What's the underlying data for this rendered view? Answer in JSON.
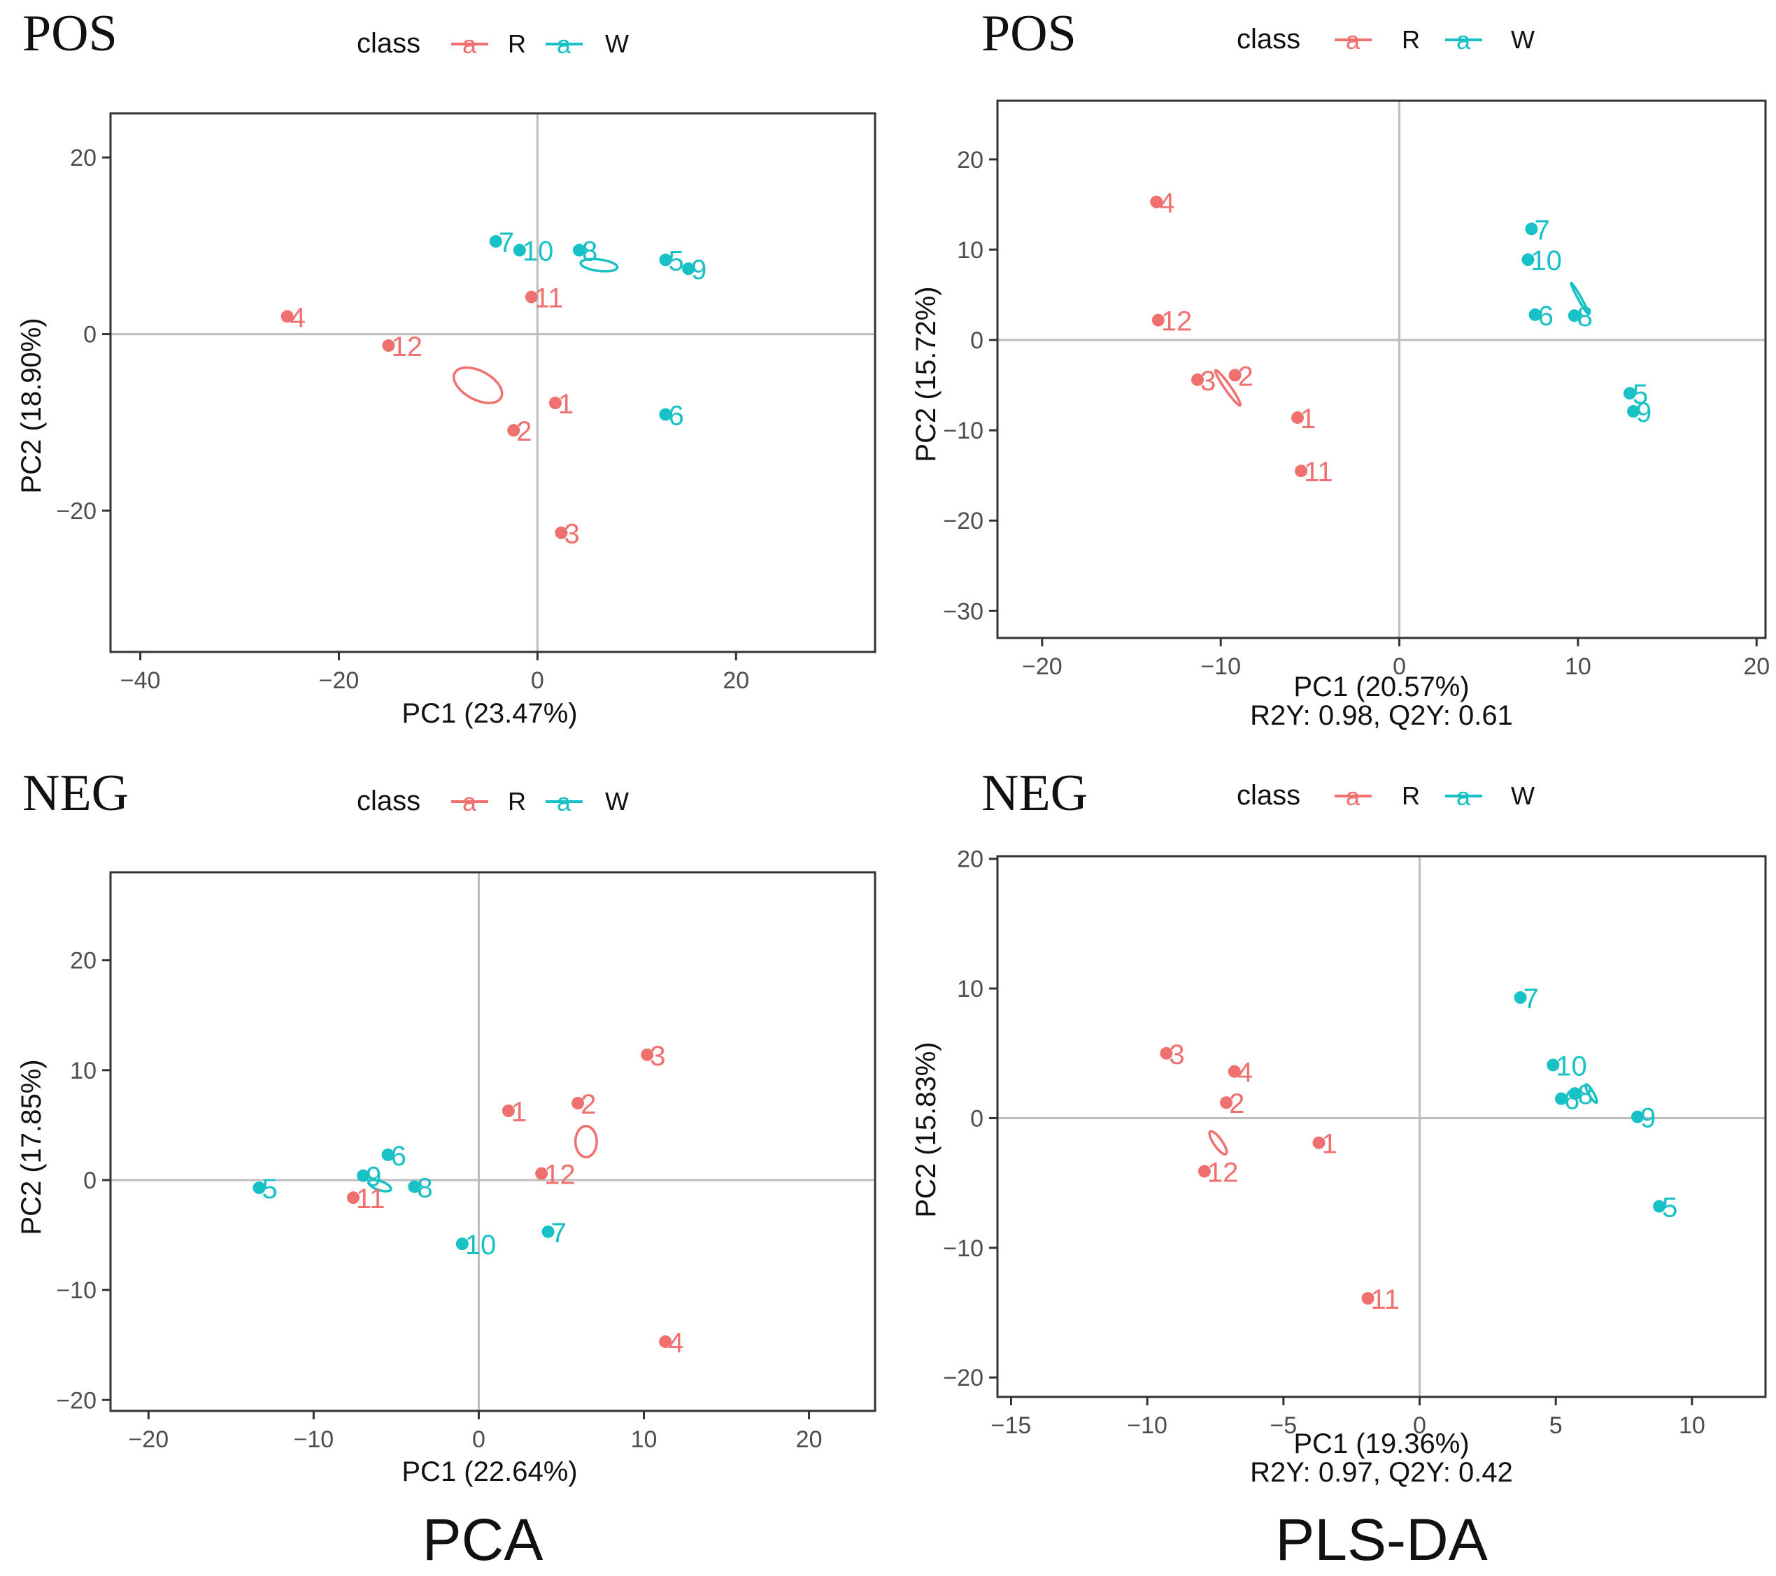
{
  "colors": {
    "R": "#f07070",
    "W": "#17c1c6",
    "axis": "#333333",
    "grid": "#bdbdbd",
    "text": "#4d4d4d"
  },
  "footer": {
    "left": "PCA",
    "right": "PLS-DA"
  },
  "chart_data": [
    {
      "type": "scatter",
      "panel_title": "POS",
      "legend": {
        "title": "class",
        "glyph": "a",
        "entries": [
          "R",
          "W"
        ]
      },
      "xlabel": "PC1 (23.47%)",
      "ylabel": "PC2 (18.90%)",
      "subtitle": "",
      "xlim": [
        -43,
        34
      ],
      "ylim": [
        -36,
        25
      ],
      "xticks": [
        -40,
        -20,
        0,
        20
      ],
      "xtick_labels": [
        "−40",
        "−20",
        "0",
        "20"
      ],
      "yticks": [
        -20,
        0,
        20
      ],
      "ytick_labels": [
        "−20",
        "0",
        "20"
      ],
      "points": [
        {
          "label": "7",
          "class": "W",
          "x": -4.2,
          "y": 10.5
        },
        {
          "label": "10",
          "class": "W",
          "x": -1.8,
          "y": 9.5
        },
        {
          "label": "8",
          "class": "W",
          "x": 4.2,
          "y": 9.5
        },
        {
          "label": "5",
          "class": "W",
          "x": 12.9,
          "y": 8.4
        },
        {
          "label": "9",
          "class": "W",
          "x": 15.2,
          "y": 7.4
        },
        {
          "label": "6",
          "class": "W",
          "x": 12.9,
          "y": -9.1
        },
        {
          "label": "11",
          "class": "R",
          "x": -0.6,
          "y": 4.2
        },
        {
          "label": "4",
          "class": "R",
          "x": -25.2,
          "y": 2.0
        },
        {
          "label": "12",
          "class": "R",
          "x": -15.0,
          "y": -1.3
        },
        {
          "label": "1",
          "class": "R",
          "x": 1.8,
          "y": -7.8
        },
        {
          "label": "2",
          "class": "R",
          "x": -2.4,
          "y": -10.9
        },
        {
          "label": "3",
          "class": "R",
          "x": 2.4,
          "y": -22.5
        }
      ],
      "ellipses": [
        {
          "class": "R",
          "cx": -6.0,
          "cy": -5.8,
          "rx": 37.5,
          "ry": 20.5,
          "angle": -28
        },
        {
          "class": "W",
          "cx": 6.2,
          "cy": 7.8,
          "rx": 26.4,
          "ry": 8.2,
          "angle": -7
        }
      ]
    },
    {
      "type": "scatter",
      "panel_title": "POS",
      "legend": {
        "title": "class",
        "glyph": "a",
        "entries": [
          "R",
          "W"
        ]
      },
      "xlabel": "PC1 (20.57%)",
      "ylabel": "PC2 (15.72%)",
      "subtitle": "R2Y: 0.98, Q2Y: 0.61",
      "xlim": [
        -22.5,
        20.5
      ],
      "ylim": [
        -33,
        26.5
      ],
      "xticks": [
        -20,
        -10,
        0,
        10,
        20
      ],
      "xtick_labels": [
        "−20",
        "−10",
        "0",
        "10",
        "20"
      ],
      "yticks": [
        -30,
        -20,
        -10,
        0,
        10,
        20
      ],
      "ytick_labels": [
        "−30",
        "−20",
        "−10",
        "0",
        "10",
        "20"
      ],
      "points": [
        {
          "label": "4",
          "class": "R",
          "x": -13.6,
          "y": 15.3
        },
        {
          "label": "12",
          "class": "R",
          "x": -13.5,
          "y": 2.2
        },
        {
          "label": "3",
          "class": "R",
          "x": -11.3,
          "y": -4.4
        },
        {
          "label": "2",
          "class": "R",
          "x": -9.2,
          "y": -3.9
        },
        {
          "label": "1",
          "class": "R",
          "x": -5.7,
          "y": -8.6
        },
        {
          "label": "11",
          "class": "R",
          "x": -5.5,
          "y": -14.5
        },
        {
          "label": "7",
          "class": "W",
          "x": 7.4,
          "y": 12.3
        },
        {
          "label": "10",
          "class": "W",
          "x": 7.2,
          "y": 8.9
        },
        {
          "label": "6",
          "class": "W",
          "x": 7.6,
          "y": 2.8
        },
        {
          "label": "8",
          "class": "W",
          "x": 9.8,
          "y": 2.7
        },
        {
          "label": "5",
          "class": "W",
          "x": 12.9,
          "y": -5.9
        },
        {
          "label": "9",
          "class": "W",
          "x": 13.1,
          "y": -7.9
        }
      ],
      "ellipses": [
        {
          "class": "R",
          "cx": -9.6,
          "cy": -5.3,
          "rx": 30.5,
          "ry": 4.2,
          "angle": -55
        },
        {
          "class": "W",
          "cx": 10.1,
          "cy": 4.6,
          "rx": 25.0,
          "ry": 2.3,
          "angle": -61
        }
      ]
    },
    {
      "type": "scatter",
      "panel_title": "NEG",
      "legend": {
        "title": "class",
        "glyph": "a",
        "entries": [
          "R",
          "W"
        ]
      },
      "xlabel": "PC1 (22.64%)",
      "ylabel": "PC2 (17.85%)",
      "subtitle": "",
      "xlim": [
        -22.3,
        24
      ],
      "ylim": [
        -21,
        28
      ],
      "xticks": [
        -20,
        -10,
        0,
        10,
        20
      ],
      "xtick_labels": [
        "−20",
        "−10",
        "0",
        "10",
        "20"
      ],
      "yticks": [
        -20,
        -10,
        0,
        10,
        20
      ],
      "ytick_labels": [
        "−20",
        "−10",
        "0",
        "10",
        "20"
      ],
      "points": [
        {
          "label": "3",
          "class": "R",
          "x": 10.2,
          "y": 11.4
        },
        {
          "label": "1",
          "class": "R",
          "x": 1.8,
          "y": 6.3
        },
        {
          "label": "2",
          "class": "R",
          "x": 6.0,
          "y": 7.0
        },
        {
          "label": "12",
          "class": "R",
          "x": 3.8,
          "y": 0.6
        },
        {
          "label": "11",
          "class": "R",
          "x": -7.6,
          "y": -1.6
        },
        {
          "label": "4",
          "class": "R",
          "x": 11.3,
          "y": -14.7
        },
        {
          "label": "5",
          "class": "W",
          "x": -13.3,
          "y": -0.7
        },
        {
          "label": "6",
          "class": "W",
          "x": -5.5,
          "y": 2.3
        },
        {
          "label": "9",
          "class": "W",
          "x": -7.0,
          "y": 0.4
        },
        {
          "label": "8",
          "class": "W",
          "x": -3.9,
          "y": -0.6
        },
        {
          "label": "10",
          "class": "W",
          "x": -1.0,
          "y": -5.8
        },
        {
          "label": "7",
          "class": "W",
          "x": 4.2,
          "y": -4.7
        }
      ],
      "ellipses": [
        {
          "class": "R",
          "cx": 6.5,
          "cy": 3.5,
          "rx": 15.2,
          "ry": 22.2,
          "angle": 0
        },
        {
          "class": "W",
          "cx": -6.0,
          "cy": -0.5,
          "rx": 16.8,
          "ry": 6.4,
          "angle": -19
        }
      ]
    },
    {
      "type": "scatter",
      "panel_title": "NEG",
      "legend": {
        "title": "class",
        "glyph": "a",
        "entries": [
          "R",
          "W"
        ]
      },
      "xlabel": "PC1 (19.36%)",
      "ylabel": "PC2 (15.83%)",
      "subtitle": "R2Y: 0.97, Q2Y: 0.42",
      "xlim": [
        -15.5,
        12.7
      ],
      "ylim": [
        -21.5,
        20.2
      ],
      "xticks": [
        -15,
        -10,
        -5,
        0,
        5,
        10
      ],
      "xtick_labels": [
        "−15",
        "−10",
        "−5",
        "0",
        "5",
        "10"
      ],
      "yticks": [
        -20,
        -10,
        0,
        10,
        20
      ],
      "ytick_labels": [
        "−20",
        "−10",
        "0",
        "10",
        "20"
      ],
      "points": [
        {
          "label": "3",
          "class": "R",
          "x": -9.3,
          "y": 5.0
        },
        {
          "label": "4",
          "class": "R",
          "x": -6.8,
          "y": 3.6
        },
        {
          "label": "2",
          "class": "R",
          "x": -7.1,
          "y": 1.2
        },
        {
          "label": "1",
          "class": "R",
          "x": -3.7,
          "y": -1.9
        },
        {
          "label": "12",
          "class": "R",
          "x": -7.9,
          "y": -4.1
        },
        {
          "label": "11",
          "class": "R",
          "x": -1.9,
          "y": -13.9
        },
        {
          "label": "7",
          "class": "W",
          "x": 3.7,
          "y": 9.3
        },
        {
          "label": "10",
          "class": "W",
          "x": 4.9,
          "y": 4.1
        },
        {
          "label": "8",
          "class": "W",
          "x": 5.7,
          "y": 1.9
        },
        {
          "label": "6",
          "class": "W",
          "x": 5.2,
          "y": 1.5
        },
        {
          "label": "9",
          "class": "W",
          "x": 8.0,
          "y": 0.1
        },
        {
          "label": "5",
          "class": "W",
          "x": 8.8,
          "y": -6.8
        }
      ],
      "ellipses": [
        {
          "class": "R",
          "cx": -7.4,
          "cy": -1.9,
          "rx": 19.6,
          "ry": 6.0,
          "angle": -55
        },
        {
          "class": "W",
          "cx": 6.3,
          "cy": 1.9,
          "rx": 14.9,
          "ry": 3.5,
          "angle": -60
        }
      ]
    }
  ]
}
